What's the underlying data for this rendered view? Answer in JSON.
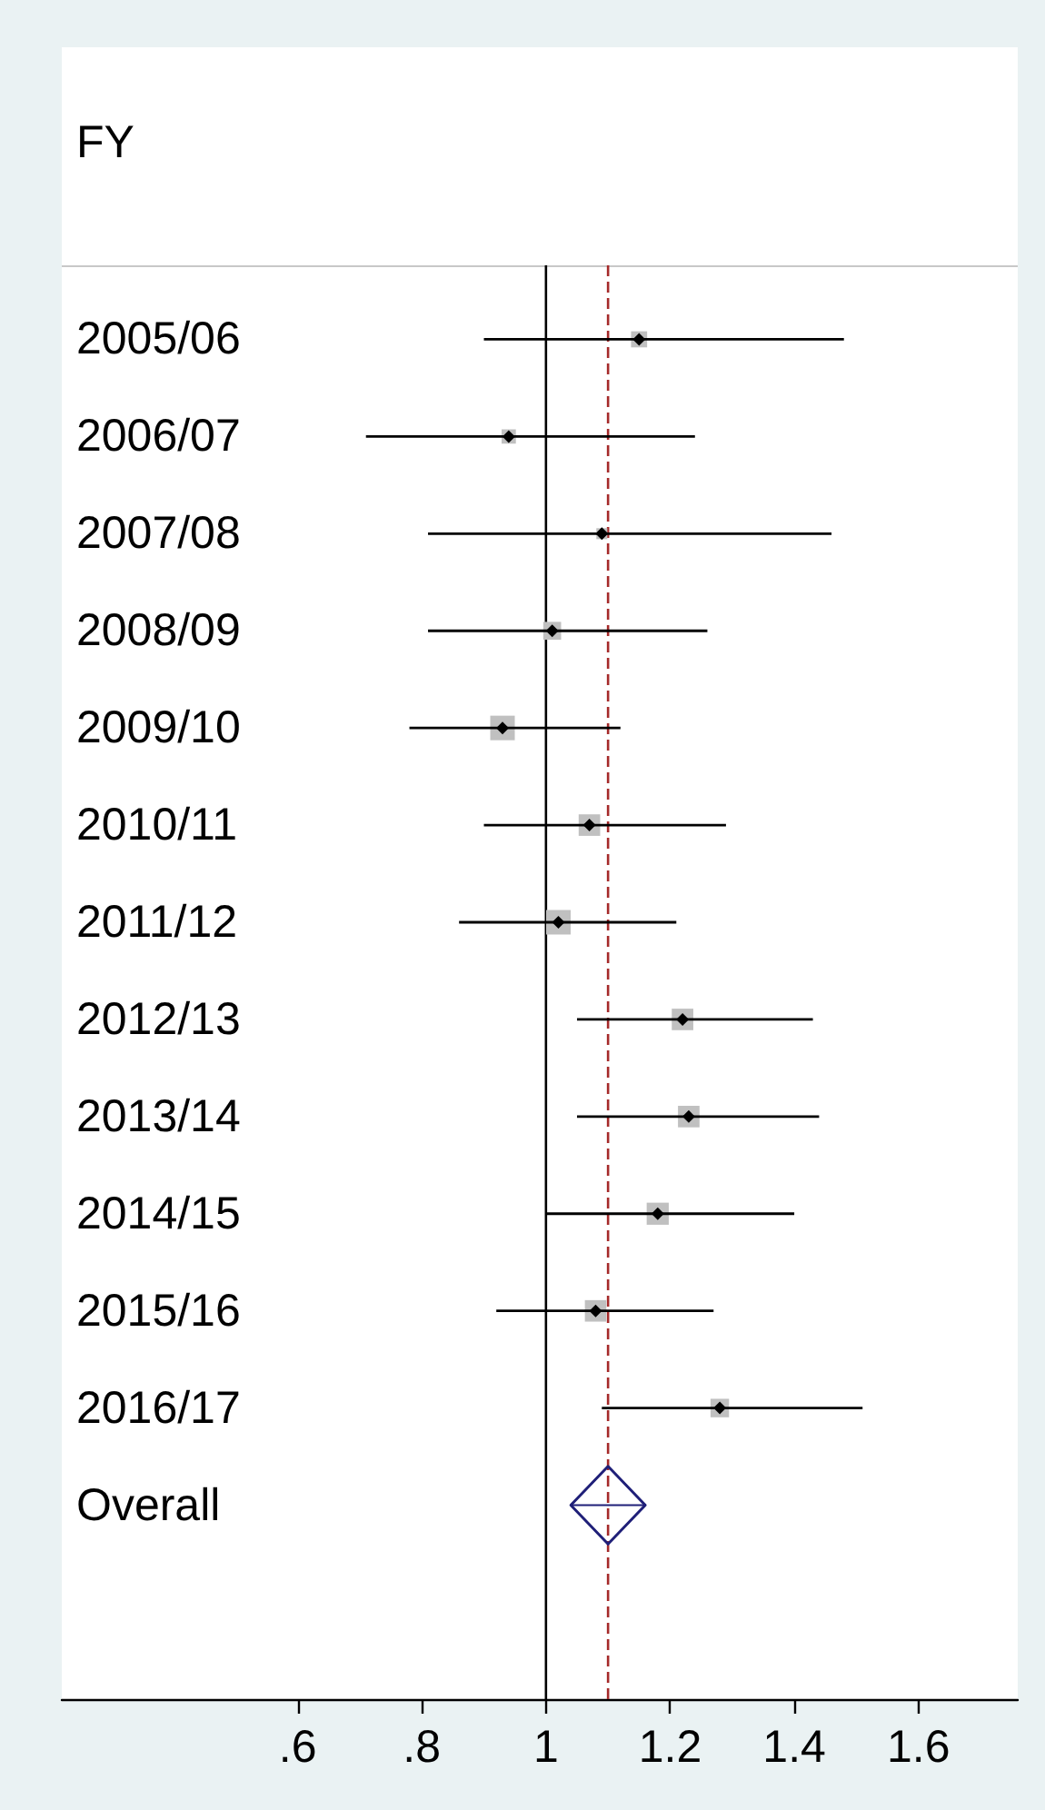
{
  "chart_data": {
    "type": "scatter",
    "orientation": "horizontal",
    "ylabel": "FY",
    "categories": [
      "2005/06",
      "2006/07",
      "2007/08",
      "2008/09",
      "2009/10",
      "2010/11",
      "2011/12",
      "2012/13",
      "2013/14",
      "2014/15",
      "2015/16",
      "2016/17",
      "Overall"
    ],
    "xlim": [
      0.22,
      1.76
    ],
    "xticks": [
      {
        "value": 0.6,
        "label": ".6"
      },
      {
        "value": 0.8,
        "label": ".8"
      },
      1,
      1.2,
      1.4,
      1.6
    ],
    "series": [
      {
        "type": "bubble",
        "marker": "square",
        "color": "#c0c0c0",
        "values": [
          1.15,
          0.94,
          1.09,
          1.01,
          0.93,
          1.07,
          1.02,
          1.22,
          1.23,
          1.18,
          1.08,
          1.28,
          null
        ],
        "sizes": [
          0.43,
          0.34,
          0.2,
          0.53,
          1,
          0.77,
          1,
          0.77,
          0.77,
          0.81,
          0.77,
          0.57,
          null
        ]
      },
      {
        "marker": "diamond",
        "color": "#000000",
        "values": [
          1.15,
          0.94,
          1.09,
          1.01,
          0.93,
          1.07,
          1.02,
          1.22,
          1.23,
          1.18,
          1.08,
          1.28,
          null
        ],
        "errors": [
          [
            0.9,
            1.48
          ],
          [
            0.71,
            1.24
          ],
          [
            0.81,
            1.46
          ],
          [
            0.81,
            1.26
          ],
          [
            0.78,
            1.12
          ],
          [
            0.9,
            1.29
          ],
          [
            0.86,
            1.21
          ],
          [
            1.05,
            1.43
          ],
          [
            1.05,
            1.44
          ],
          [
            1.0,
            1.4
          ],
          [
            0.92,
            1.27
          ],
          [
            1.09,
            1.51
          ],
          null
        ]
      },
      {
        "marker": "diamond",
        "line_style": "solid",
        "color": "#1f1f78",
        "values": [
          null,
          null,
          null,
          null,
          null,
          null,
          null,
          null,
          null,
          null,
          null,
          null,
          1.1
        ],
        "errors": [
          null,
          null,
          null,
          null,
          null,
          null,
          null,
          null,
          null,
          null,
          null,
          null,
          [
            1.04,
            1.16
          ]
        ]
      }
    ],
    "ref_lines": [
      {
        "axis": "x",
        "value": 1,
        "color": "#000000",
        "line_style": "solid"
      },
      {
        "axis": "x",
        "value": 1.1,
        "color": "#a52a2a",
        "line_style": "dashed"
      }
    ],
    "grid": false
  }
}
